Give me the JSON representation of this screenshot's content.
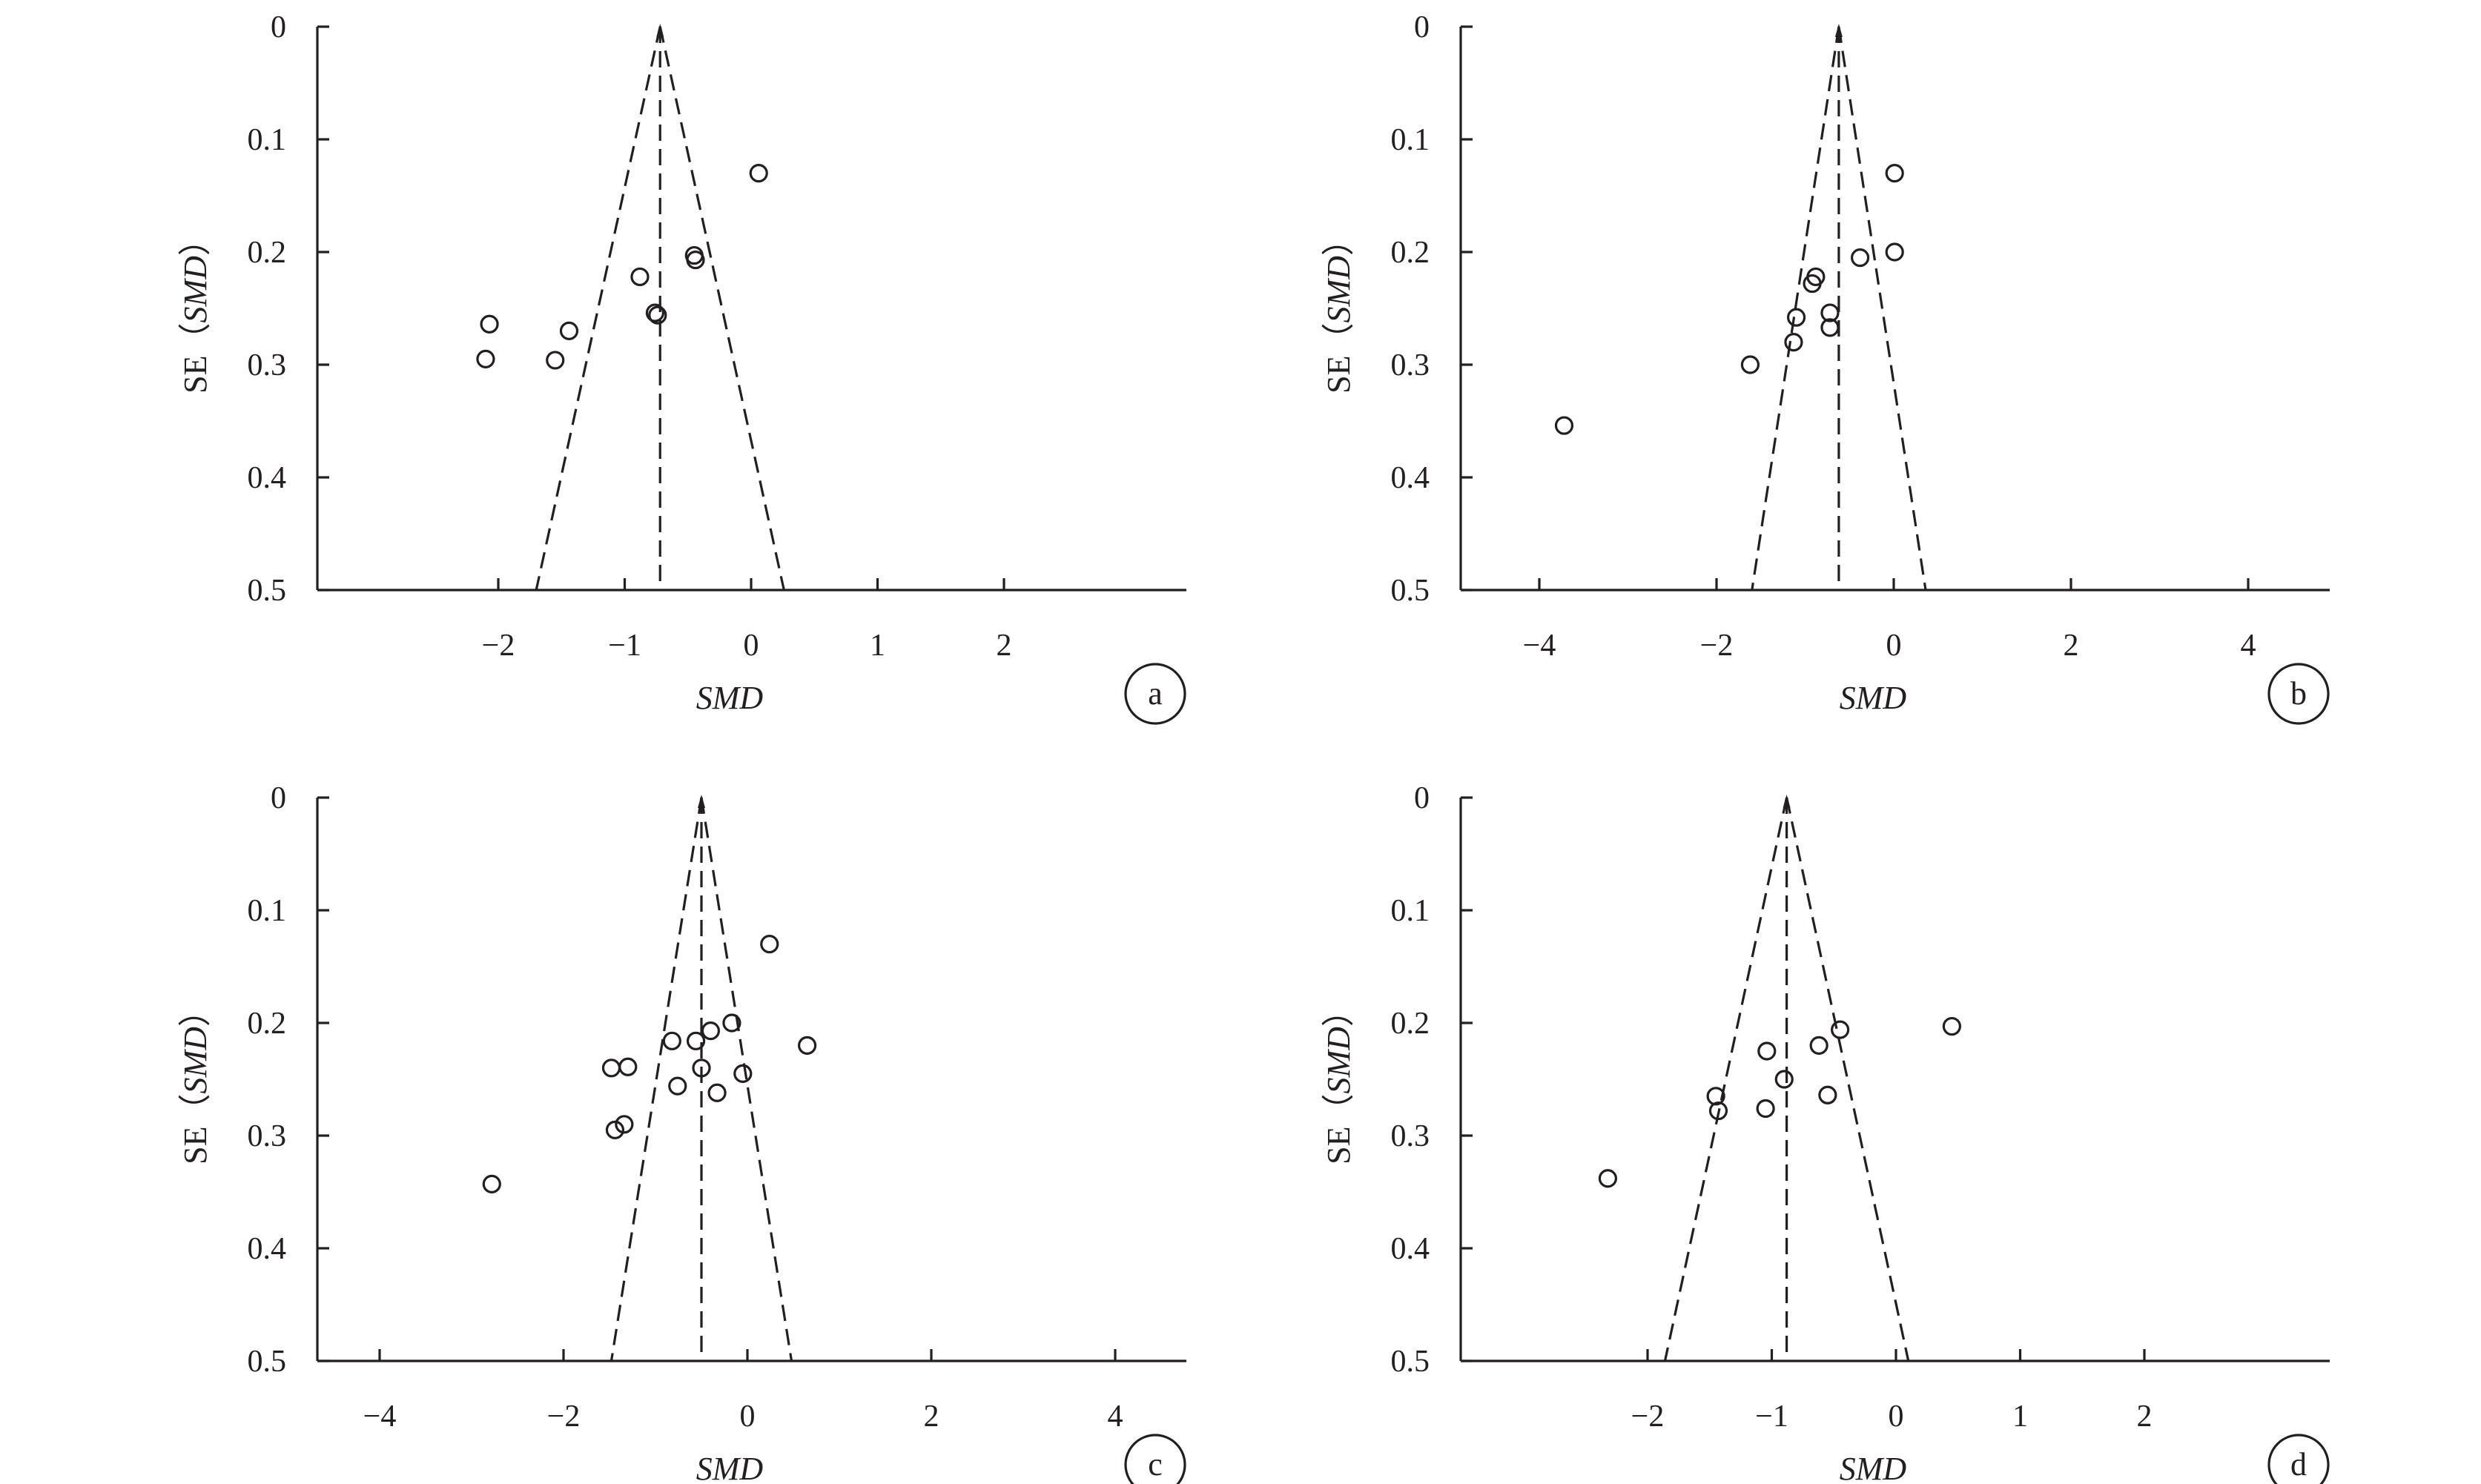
{
  "chart_data": [
    {
      "type": "scatter",
      "panel_label": "a",
      "xlabel": "SMD",
      "ylabel_prefix": "SE（",
      "ylabel_var": "SMD",
      "ylabel_suffix": "）",
      "xlim": [
        -3.5,
        3.5
      ],
      "ylim": [
        0,
        0.5
      ],
      "y_reversed": true,
      "xticks": [
        -2,
        -1,
        0,
        1,
        2
      ],
      "xtick_labels": [
        "−2",
        "−1",
        "0",
        "1",
        "2"
      ],
      "yticks": [
        0,
        0.1,
        0.2,
        0.3,
        0.4,
        0.5
      ],
      "ytick_labels": [
        "0",
        "0.1",
        "0.2",
        "0.3",
        "0.4",
        "0.5"
      ],
      "pooled_smd": -0.72,
      "points": [
        {
          "x": 0.06,
          "y": 0.13
        },
        {
          "x": -0.45,
          "y": 0.203
        },
        {
          "x": -0.44,
          "y": 0.207
        },
        {
          "x": -0.88,
          "y": 0.222
        },
        {
          "x": -0.76,
          "y": 0.254
        },
        {
          "x": -0.74,
          "y": 0.256
        },
        {
          "x": -2.07,
          "y": 0.264
        },
        {
          "x": -1.44,
          "y": 0.27
        },
        {
          "x": -2.1,
          "y": 0.295
        },
        {
          "x": -1.55,
          "y": 0.296
        }
      ]
    },
    {
      "type": "scatter",
      "panel_label": "b",
      "xlabel": "SMD",
      "ylabel_prefix": "SE（",
      "ylabel_var": "SMD",
      "ylabel_suffix": "）",
      "xlim": [
        -5,
        5
      ],
      "ylim": [
        0,
        0.5
      ],
      "y_reversed": true,
      "xticks": [
        -4,
        -2,
        0,
        2,
        4
      ],
      "xtick_labels": [
        "−4",
        "−2",
        "0",
        "2",
        "4"
      ],
      "yticks": [
        0,
        0.1,
        0.2,
        0.3,
        0.4,
        0.5
      ],
      "ytick_labels": [
        "0",
        "0.1",
        "0.2",
        "0.3",
        "0.4",
        "0.5"
      ],
      "pooled_smd": -0.62,
      "points": [
        {
          "x": 0.01,
          "y": 0.13
        },
        {
          "x": 0.01,
          "y": 0.2
        },
        {
          "x": -0.38,
          "y": 0.205
        },
        {
          "x": -0.88,
          "y": 0.222
        },
        {
          "x": -0.92,
          "y": 0.228
        },
        {
          "x": -0.72,
          "y": 0.254
        },
        {
          "x": -1.1,
          "y": 0.258
        },
        {
          "x": -0.72,
          "y": 0.267
        },
        {
          "x": -1.13,
          "y": 0.28
        },
        {
          "x": -1.62,
          "y": 0.3
        },
        {
          "x": -3.72,
          "y": 0.354
        }
      ]
    },
    {
      "type": "scatter",
      "panel_label": "c",
      "xlabel": "SMD",
      "ylabel_prefix": "SE（",
      "ylabel_var": "SMD",
      "ylabel_suffix": "）",
      "xlim": [
        -4.8,
        4.8
      ],
      "ylim": [
        0,
        0.5
      ],
      "y_reversed": true,
      "xticks": [
        -4,
        -2,
        0,
        2,
        4
      ],
      "xtick_labels": [
        "−4",
        "−2",
        "0",
        "2",
        "4"
      ],
      "yticks": [
        0,
        0.1,
        0.2,
        0.3,
        0.4,
        0.5
      ],
      "ytick_labels": [
        "0",
        "0.1",
        "0.2",
        "0.3",
        "0.4",
        "0.5"
      ],
      "pooled_smd": -0.5,
      "points": [
        {
          "x": 0.24,
          "y": 0.13
        },
        {
          "x": -0.17,
          "y": 0.2
        },
        {
          "x": -0.4,
          "y": 0.207
        },
        {
          "x": -0.82,
          "y": 0.216
        },
        {
          "x": -0.56,
          "y": 0.216
        },
        {
          "x": 0.65,
          "y": 0.22
        },
        {
          "x": -1.48,
          "y": 0.24
        },
        {
          "x": -1.3,
          "y": 0.239
        },
        {
          "x": -0.5,
          "y": 0.24
        },
        {
          "x": -0.05,
          "y": 0.245
        },
        {
          "x": -0.76,
          "y": 0.256
        },
        {
          "x": -0.33,
          "y": 0.262
        },
        {
          "x": -1.34,
          "y": 0.29
        },
        {
          "x": -1.44,
          "y": 0.295
        },
        {
          "x": -2.78,
          "y": 0.343
        }
      ]
    },
    {
      "type": "scatter",
      "panel_label": "d",
      "xlabel": "SMD",
      "ylabel_prefix": "SE（",
      "ylabel_var": "SMD",
      "ylabel_suffix": "）",
      "xlim": [
        -3.5,
        3.5
      ],
      "ylim": [
        0,
        0.5
      ],
      "y_reversed": true,
      "xticks": [
        -2,
        -1,
        0,
        1,
        2
      ],
      "xtick_labels": [
        "−2",
        "−1",
        "0",
        "1",
        "2"
      ],
      "yticks": [
        0,
        0.1,
        0.2,
        0.3,
        0.4,
        0.5
      ],
      "ytick_labels": [
        "0",
        "0.1",
        "0.2",
        "0.3",
        "0.4",
        "0.5"
      ],
      "pooled_smd": -0.88,
      "points": [
        {
          "x": 0.45,
          "y": 0.203
        },
        {
          "x": -0.45,
          "y": 0.206
        },
        {
          "x": -0.62,
          "y": 0.22
        },
        {
          "x": -1.04,
          "y": 0.225
        },
        {
          "x": -0.9,
          "y": 0.25
        },
        {
          "x": -1.45,
          "y": 0.265
        },
        {
          "x": -0.55,
          "y": 0.264
        },
        {
          "x": -1.43,
          "y": 0.278
        },
        {
          "x": -1.05,
          "y": 0.276
        },
        {
          "x": -2.32,
          "y": 0.338
        }
      ]
    }
  ]
}
